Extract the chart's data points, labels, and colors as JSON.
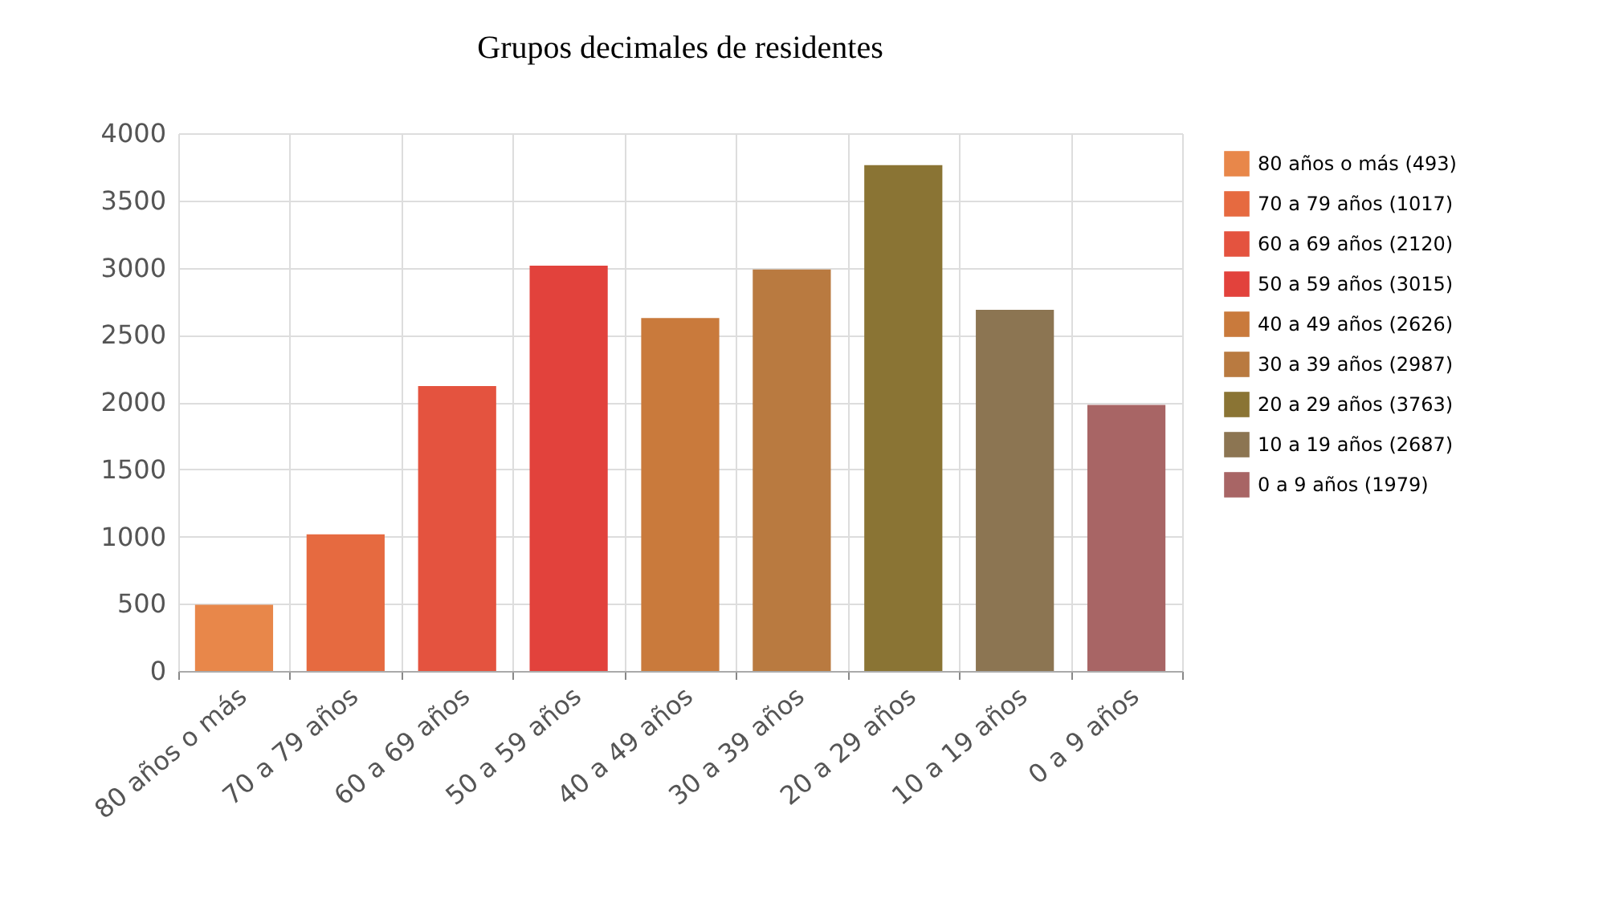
{
  "chart_data": {
    "type": "bar",
    "title": "Grupos decimales de residentes",
    "categories": [
      "80 años o más",
      "70 a 79 años",
      "60 a 69 años",
      "50 a 59 años",
      "40 a 49 años",
      "30 a 39 años",
      "20 a 29 años",
      "10 a 19 años",
      "0 a 9 años"
    ],
    "series": [
      {
        "name": "80 años o más (493)",
        "color": "#e8874a",
        "values": [
          493,
          null,
          null,
          null,
          null,
          null,
          null,
          null,
          null
        ]
      },
      {
        "name": "70 a 79 años (1017)",
        "color": "#e66a40",
        "values": [
          null,
          1017,
          null,
          null,
          null,
          null,
          null,
          null,
          null
        ]
      },
      {
        "name": "60 a 69 años (2120)",
        "color": "#e4533f",
        "values": [
          null,
          null,
          2120,
          null,
          null,
          null,
          null,
          null,
          null
        ]
      },
      {
        "name": "50 a 59 años (3015)",
        "color": "#e2423c",
        "values": [
          null,
          null,
          null,
          3015,
          null,
          null,
          null,
          null,
          null
        ]
      },
      {
        "name": "40 a 49 años (2626)",
        "color": "#c97a3c",
        "values": [
          null,
          null,
          null,
          null,
          2626,
          null,
          null,
          null,
          null
        ]
      },
      {
        "name": "30 a 39 años (2987)",
        "color": "#b97a40",
        "values": [
          null,
          null,
          null,
          null,
          null,
          2987,
          null,
          null,
          null
        ]
      },
      {
        "name": "20 a 29 años (3763)",
        "color": "#8a7434",
        "values": [
          null,
          null,
          null,
          null,
          null,
          null,
          3763,
          null,
          null
        ]
      },
      {
        "name": "10 a 19 años (2687)",
        "color": "#8c7552",
        "values": [
          null,
          null,
          null,
          null,
          null,
          null,
          null,
          2687,
          null
        ]
      },
      {
        "name": "0 a 9 años (1979)",
        "color": "#a86565",
        "values": [
          null,
          null,
          null,
          null,
          null,
          null,
          null,
          null,
          1979
        ]
      }
    ],
    "ylim": [
      0,
      4000
    ],
    "yticks": [
      0,
      500,
      1000,
      1500,
      2000,
      2500,
      3000,
      3500,
      4000
    ],
    "grid": true,
    "legend": "right"
  }
}
